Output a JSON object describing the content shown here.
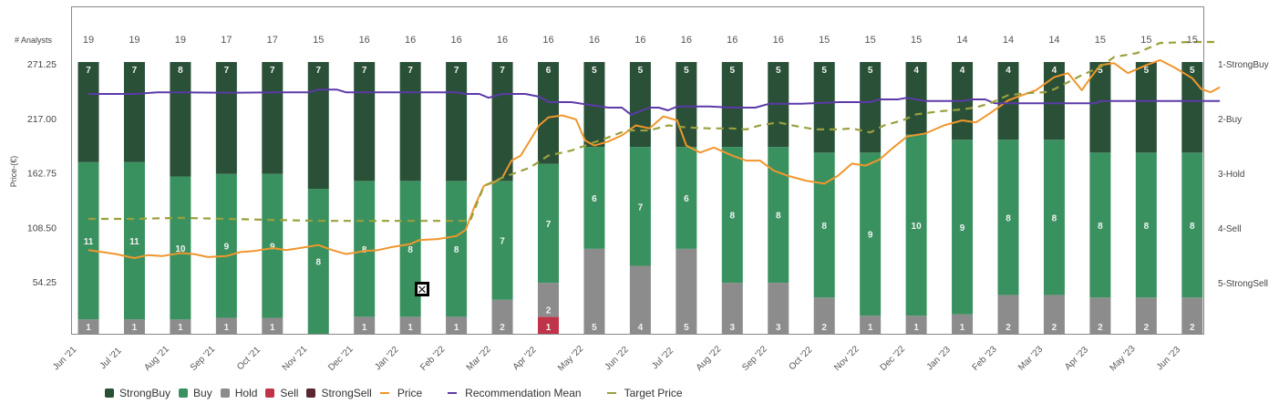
{
  "chart_data": {
    "type": "bar",
    "subtype": "100%-stacked bar with overlaid lines",
    "categories": [
      "Jun '21",
      "Jul '21",
      "Aug '21",
      "Sep '21",
      "Oct '21",
      "Nov '21",
      "Dec '21",
      "Jan '22",
      "Feb '22",
      "Mar '22",
      "Apr '22",
      "May '22",
      "Jun '22",
      "Jul '22",
      "Aug '22",
      "Sep '22",
      "Oct '22",
      "Nov '22",
      "Dec '22",
      "Jan '23",
      "Feb '23",
      "Mar '23",
      "Apr '23",
      "May '23",
      "Jun '23"
    ],
    "analysts_label": "# Analysts",
    "analysts": [
      19,
      19,
      19,
      17,
      17,
      15,
      16,
      16,
      16,
      16,
      16,
      16,
      16,
      16,
      16,
      16,
      15,
      15,
      15,
      14,
      14,
      14,
      15,
      15,
      15
    ],
    "series": [
      {
        "name": "StrongBuy",
        "color": "#2a5038",
        "values": [
          7,
          7,
          8,
          7,
          7,
          7,
          7,
          7,
          7,
          7,
          6,
          5,
          5,
          5,
          5,
          5,
          5,
          5,
          4,
          4,
          4,
          4,
          5,
          5,
          5
        ]
      },
      {
        "name": "Buy",
        "color": "#3a9160",
        "values": [
          11,
          11,
          10,
          9,
          9,
          8,
          8,
          8,
          8,
          7,
          7,
          6,
          7,
          6,
          8,
          8,
          8,
          9,
          10,
          9,
          8,
          8,
          8,
          8,
          8
        ]
      },
      {
        "name": "Hold",
        "color": "#8c8c8c",
        "values": [
          1,
          1,
          1,
          1,
          1,
          0,
          1,
          1,
          1,
          2,
          2,
          5,
          4,
          5,
          3,
          3,
          2,
          1,
          1,
          1,
          2,
          2,
          2,
          2,
          2
        ]
      },
      {
        "name": "Sell",
        "color": "#c0344a",
        "values": [
          0,
          0,
          0,
          0,
          0,
          0,
          0,
          0,
          0,
          0,
          1,
          0,
          0,
          0,
          0,
          0,
          0,
          0,
          0,
          0,
          0,
          0,
          0,
          0,
          0
        ]
      },
      {
        "name": "StrongSell",
        "color": "#5a2530",
        "values": [
          0,
          0,
          0,
          0,
          0,
          0,
          0,
          0,
          0,
          0,
          0,
          0,
          0,
          0,
          0,
          0,
          0,
          0,
          0,
          0,
          0,
          0,
          0,
          0,
          0
        ]
      }
    ],
    "lines": [
      {
        "name": "Price",
        "color": "#f0962c",
        "axis": "left",
        "style": "solid",
        "points": [
          [
            0,
            86
          ],
          [
            0.3,
            84
          ],
          [
            0.6,
            82
          ],
          [
            1,
            78
          ],
          [
            1.3,
            81
          ],
          [
            1.6,
            80
          ],
          [
            2,
            83
          ],
          [
            2.3,
            82
          ],
          [
            2.6,
            79
          ],
          [
            3,
            80
          ],
          [
            3.3,
            84
          ],
          [
            3.6,
            85
          ],
          [
            4,
            88
          ],
          [
            4.3,
            86
          ],
          [
            4.6,
            88
          ],
          [
            5,
            91
          ],
          [
            5.3,
            86
          ],
          [
            5.6,
            82
          ],
          [
            6,
            85
          ],
          [
            6.3,
            86
          ],
          [
            6.6,
            89
          ],
          [
            7,
            92
          ],
          [
            7.2,
            96
          ],
          [
            7.6,
            97
          ],
          [
            8,
            100
          ],
          [
            8.2,
            106
          ],
          [
            8.4,
            130
          ],
          [
            8.6,
            150
          ],
          [
            8.8,
            153
          ],
          [
            9,
            158
          ],
          [
            9.2,
            175
          ],
          [
            9.4,
            180
          ],
          [
            9.6,
            195
          ],
          [
            9.8,
            210
          ],
          [
            10,
            218
          ],
          [
            10.3,
            220
          ],
          [
            10.6,
            216
          ],
          [
            10.8,
            195
          ],
          [
            11,
            190
          ],
          [
            11.3,
            194
          ],
          [
            11.6,
            200
          ],
          [
            11.9,
            210
          ],
          [
            12.2,
            207
          ],
          [
            12.5,
            219
          ],
          [
            12.8,
            215
          ],
          [
            13,
            190
          ],
          [
            13.3,
            183
          ],
          [
            13.6,
            188
          ],
          [
            14,
            180
          ],
          [
            14.3,
            175
          ],
          [
            14.6,
            175
          ],
          [
            14.9,
            165
          ],
          [
            15.2,
            160
          ],
          [
            15.6,
            155
          ],
          [
            16,
            152
          ],
          [
            16.3,
            160
          ],
          [
            16.6,
            172
          ],
          [
            16.9,
            170
          ],
          [
            17.2,
            176
          ],
          [
            17.5,
            188
          ],
          [
            17.8,
            199
          ],
          [
            18.2,
            202
          ],
          [
            18.6,
            210
          ],
          [
            19,
            215
          ],
          [
            19.3,
            213
          ],
          [
            19.6,
            222
          ],
          [
            20,
            235
          ],
          [
            20.3,
            240
          ],
          [
            20.6,
            245
          ],
          [
            21,
            258
          ],
          [
            21.3,
            262
          ],
          [
            21.6,
            245
          ],
          [
            21.8,
            258
          ],
          [
            22,
            270
          ],
          [
            22.3,
            272
          ],
          [
            22.6,
            262
          ],
          [
            23,
            270
          ],
          [
            23.3,
            275
          ],
          [
            23.6,
            268
          ],
          [
            24,
            257
          ],
          [
            24.2,
            246
          ],
          [
            24.4,
            243
          ],
          [
            24.6,
            248
          ]
        ]
      },
      {
        "name": "Recommendation Mean",
        "color": "#5b3aa8",
        "axis": "right",
        "style": "solid",
        "points": [
          [
            0,
            1.55
          ],
          [
            1,
            1.55
          ],
          [
            1.5,
            1.52
          ],
          [
            2,
            1.52
          ],
          [
            3,
            1.53
          ],
          [
            4,
            1.52
          ],
          [
            4.8,
            1.52
          ],
          [
            5,
            1.47
          ],
          [
            5.4,
            1.47
          ],
          [
            5.6,
            1.52
          ],
          [
            6,
            1.52
          ],
          [
            7,
            1.52
          ],
          [
            8,
            1.52
          ],
          [
            8.2,
            1.55
          ],
          [
            8.5,
            1.55
          ],
          [
            8.7,
            1.62
          ],
          [
            9,
            1.55
          ],
          [
            9.5,
            1.55
          ],
          [
            9.8,
            1.6
          ],
          [
            10,
            1.7
          ],
          [
            10.5,
            1.7
          ],
          [
            10.9,
            1.75
          ],
          [
            11.3,
            1.8
          ],
          [
            11.6,
            1.8
          ],
          [
            11.8,
            1.93
          ],
          [
            12.2,
            1.8
          ],
          [
            12.4,
            1.8
          ],
          [
            12.6,
            1.85
          ],
          [
            12.8,
            1.78
          ],
          [
            13.5,
            1.78
          ],
          [
            14,
            1.8
          ],
          [
            14.5,
            1.8
          ],
          [
            14.8,
            1.73
          ],
          [
            15.5,
            1.73
          ],
          [
            16.3,
            1.7
          ],
          [
            17,
            1.7
          ],
          [
            17.2,
            1.65
          ],
          [
            17.6,
            1.65
          ],
          [
            17.8,
            1.62
          ],
          [
            18.2,
            1.68
          ],
          [
            19,
            1.68
          ],
          [
            19.2,
            1.65
          ],
          [
            19.5,
            1.65
          ],
          [
            19.7,
            1.72
          ],
          [
            20.5,
            1.72
          ],
          [
            21,
            1.72
          ],
          [
            21.9,
            1.72
          ],
          [
            22,
            1.68
          ],
          [
            23,
            1.68
          ],
          [
            24.6,
            1.68
          ]
        ]
      },
      {
        "name": "Target Price",
        "color": "#9aa03c",
        "axis": "left",
        "style": "dashed",
        "points": [
          [
            0,
            117
          ],
          [
            1,
            117
          ],
          [
            2,
            118
          ],
          [
            3,
            117
          ],
          [
            4,
            116
          ],
          [
            5,
            115
          ],
          [
            6,
            115
          ],
          [
            7,
            115
          ],
          [
            8,
            115
          ],
          [
            8.3,
            115
          ],
          [
            8.6,
            150
          ],
          [
            9,
            158
          ],
          [
            9.3,
            163
          ],
          [
            9.6,
            168
          ],
          [
            10,
            180
          ],
          [
            10.5,
            185
          ],
          [
            10.8,
            190
          ],
          [
            11.3,
            198
          ],
          [
            11.7,
            205
          ],
          [
            12.2,
            205
          ],
          [
            12.6,
            210
          ],
          [
            13,
            208
          ],
          [
            13.5,
            207
          ],
          [
            14,
            207
          ],
          [
            14.3,
            206
          ],
          [
            14.6,
            210
          ],
          [
            15,
            213
          ],
          [
            15.3,
            210
          ],
          [
            15.8,
            206
          ],
          [
            16.3,
            206
          ],
          [
            16.6,
            207
          ],
          [
            17,
            203
          ],
          [
            17.3,
            210
          ],
          [
            17.7,
            215
          ],
          [
            18,
            221
          ],
          [
            18.5,
            224
          ],
          [
            19,
            226
          ],
          [
            19.3,
            228
          ],
          [
            19.6,
            232
          ],
          [
            20,
            240
          ],
          [
            20.4,
            242
          ],
          [
            20.8,
            243
          ],
          [
            21,
            246
          ],
          [
            21.3,
            253
          ],
          [
            21.6,
            260
          ],
          [
            22,
            268
          ],
          [
            22.3,
            278
          ],
          [
            22.8,
            282
          ],
          [
            23.3,
            292
          ],
          [
            24,
            293
          ],
          [
            24.6,
            293
          ]
        ]
      }
    ],
    "left_axis": {
      "label": "Price-(€)",
      "ticks": [
        54.25,
        108.5,
        162.75,
        217.0,
        271.25
      ],
      "tick_labels": [
        "54.25",
        "108.50",
        "162.75",
        "217.00",
        "271.25"
      ],
      "range": [
        0,
        271.25
      ]
    },
    "right_axis": {
      "ticks": [
        1,
        2,
        3,
        4,
        5
      ],
      "tick_labels": [
        "1-StrongBuy",
        "2-Buy",
        "3-Hold",
        "4-Sell",
        "5-StrongSell"
      ],
      "range": [
        1,
        5
      ]
    },
    "legend_position": "bottom",
    "grid": false
  },
  "legend": [
    {
      "label": "StrongBuy",
      "kind": "box",
      "color": "#2a5038"
    },
    {
      "label": "Buy",
      "kind": "box",
      "color": "#3a9160"
    },
    {
      "label": "Hold",
      "kind": "box",
      "color": "#8c8c8c"
    },
    {
      "label": "Sell",
      "kind": "box",
      "color": "#c0344a"
    },
    {
      "label": "StrongSell",
      "kind": "box",
      "color": "#5a2530"
    },
    {
      "label": "Price",
      "kind": "line",
      "color": "#f0962c"
    },
    {
      "label": "Recommendation Mean",
      "kind": "line",
      "color": "#5b3aa8"
    },
    {
      "label": "Target Price",
      "kind": "line",
      "color": "#9aa03c"
    }
  ],
  "overlay": {
    "close_icon": "close-icon",
    "close_glyph": "✕"
  }
}
